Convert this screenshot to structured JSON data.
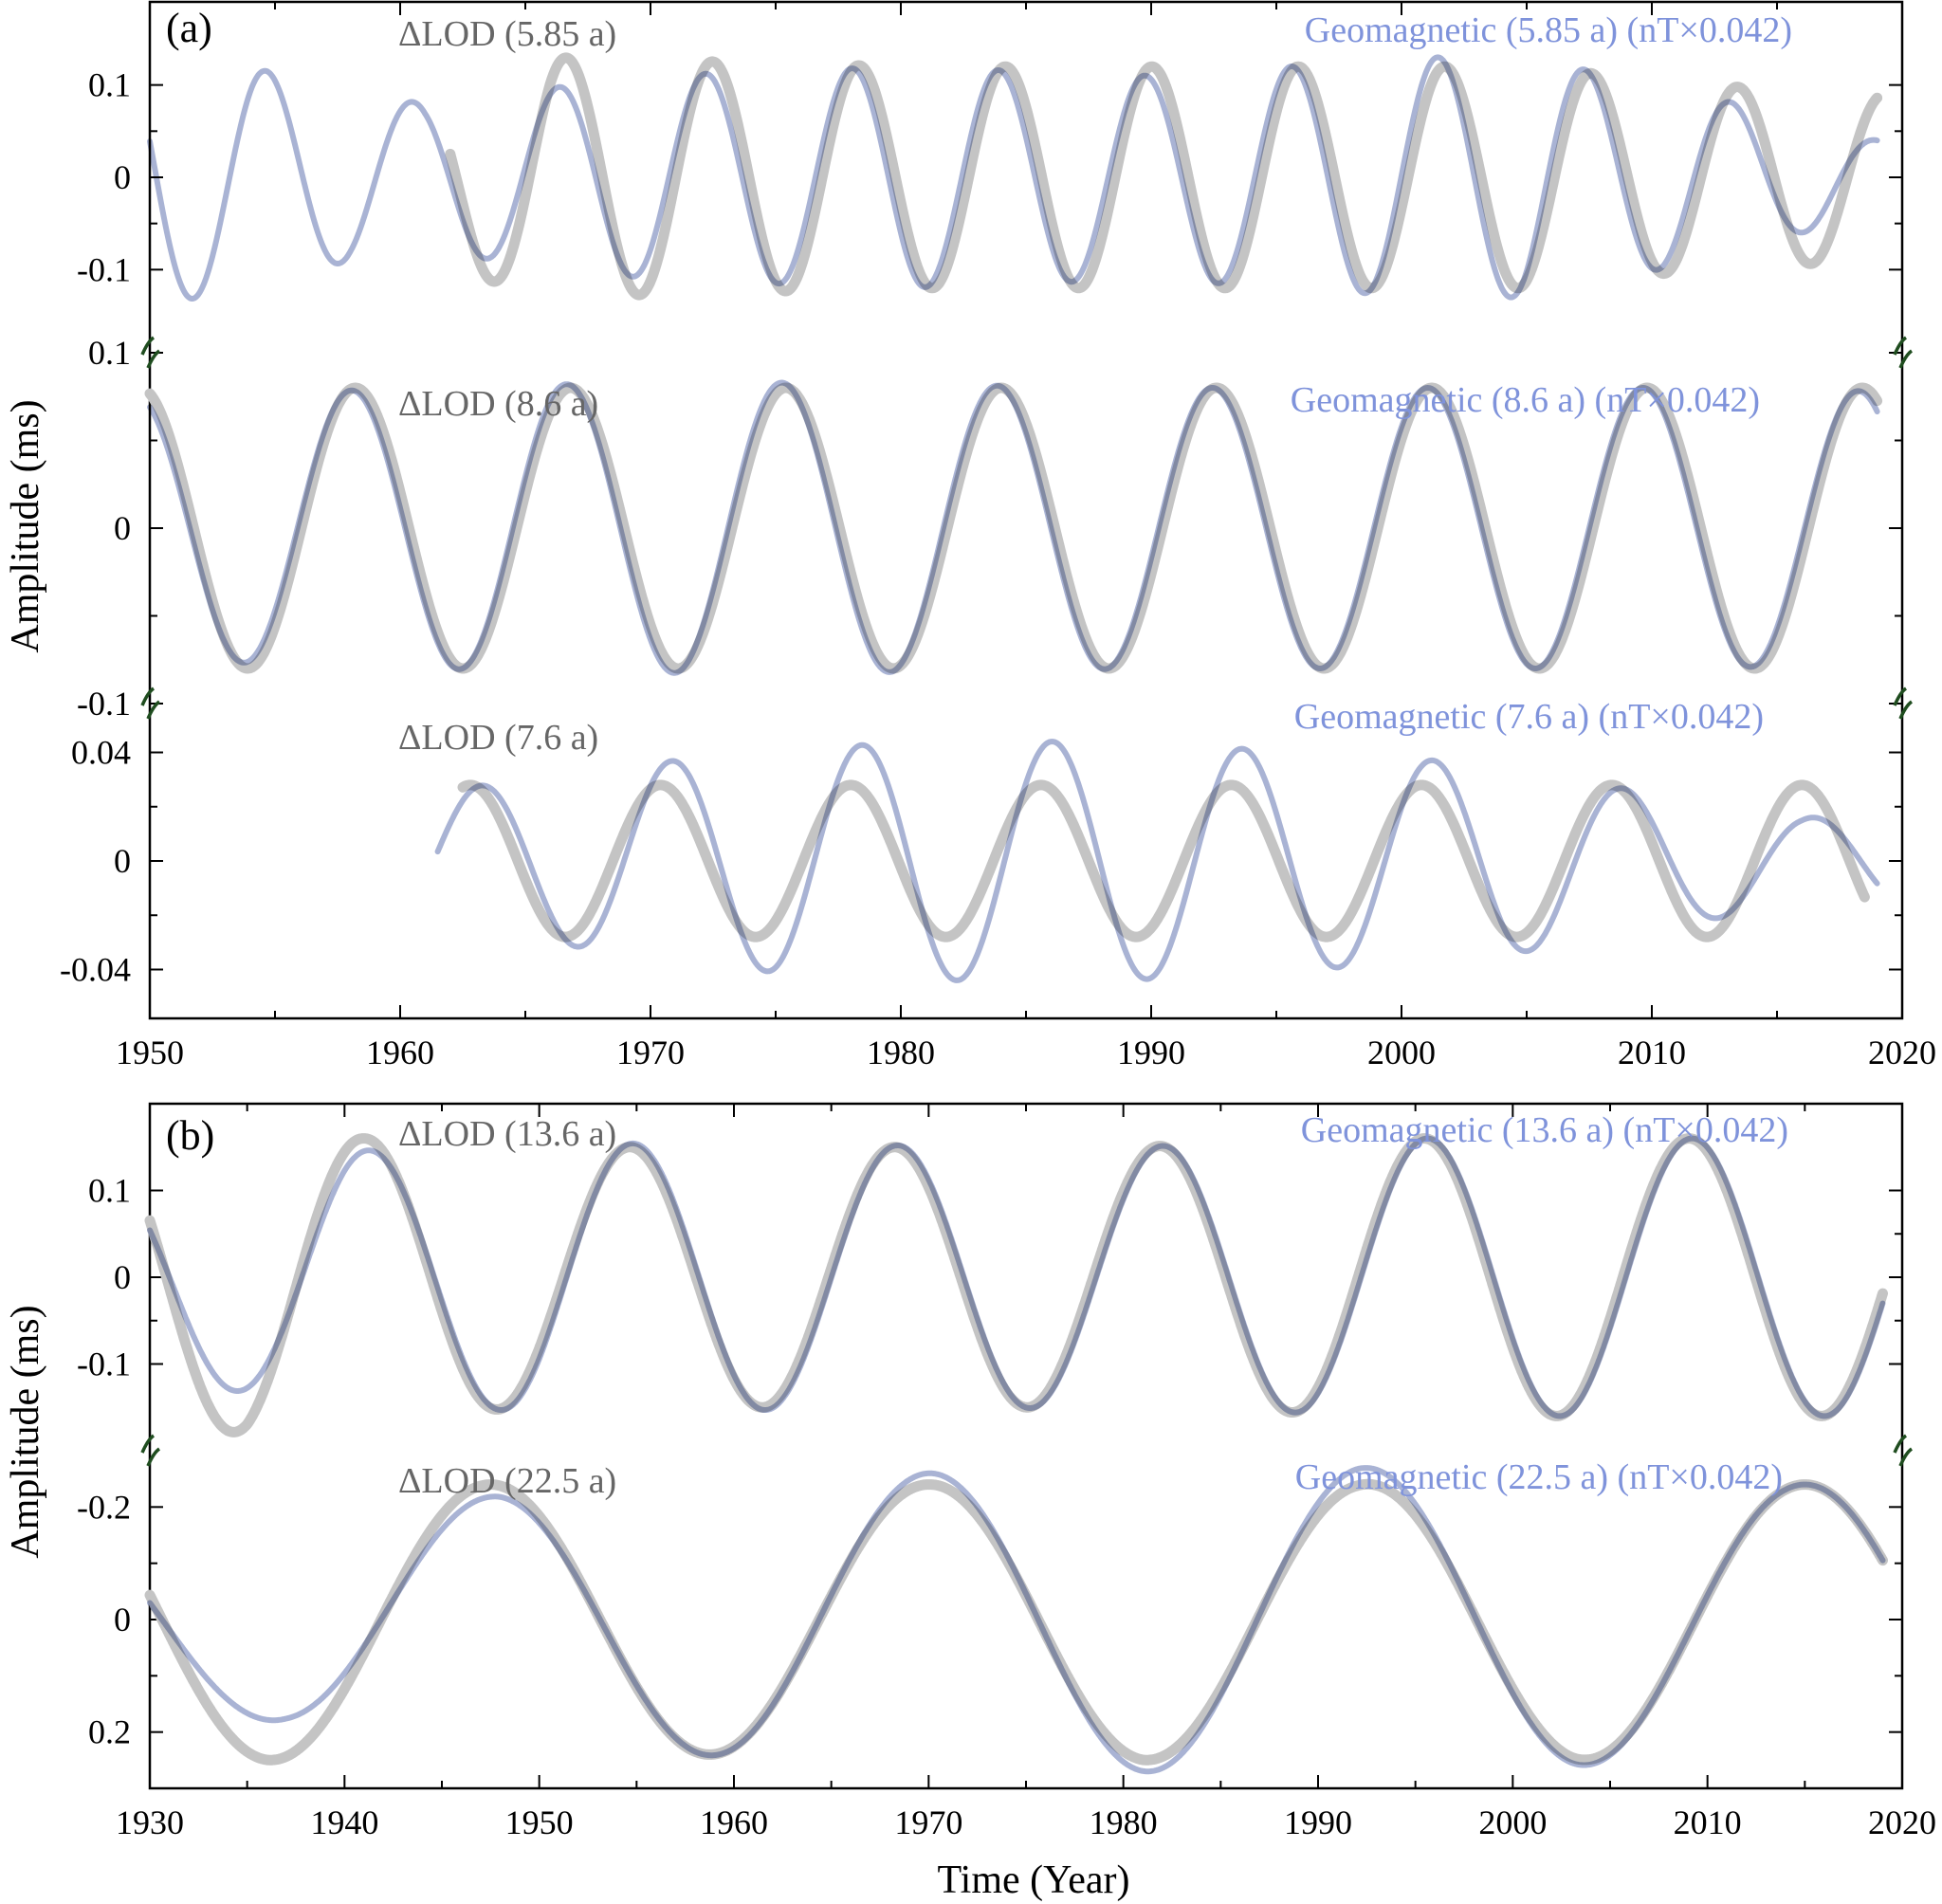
{
  "chart_data": [
    {
      "type": "line",
      "panel_label": "(a)",
      "ylabel": "Amplitude (ms)",
      "xlabel": "",
      "xlim": [
        1950,
        2020
      ],
      "xticks": [
        "1950",
        "1960",
        "1970",
        "1980",
        "1990",
        "2000",
        "2010",
        "2020"
      ],
      "subplots": [
        {
          "lod_label": "ΔLOD (5.85 a)",
          "geo_label": "Geomagnetic (5.85 a) (nT×0.042)",
          "ylim": [
            -0.19,
            0.19
          ],
          "yticks": [
            "0.1",
            "0",
            "-0.1"
          ],
          "yticks_values": [
            0.1,
            0,
            -0.1
          ],
          "series": [
            {
              "name": "ΔLOD (5.85 a)",
              "color": "#c4c4c4",
              "period": 5.85,
              "t_range": [
                1962.0,
                2019.0
              ],
              "amp_points": [
                [
                  1962,
                  0.1
                ],
                [
                  1966,
                  0.13
                ],
                [
                  1980,
                  0.12
                ],
                [
                  1995,
                  0.12
                ],
                [
                  2005,
                  0.12
                ],
                [
                  2012,
                  0.1
                ],
                [
                  2019,
                  0.09
                ]
              ],
              "ref_year": 1963.7,
              "ref_value": -0.13
            },
            {
              "name": "Geomagnetic (5.85 a) (nT×0.042)",
              "color": "#9aa6cc",
              "period": 5.85,
              "t_range": [
                1950.0,
                2019.0
              ],
              "amp_points": [
                [
                  1950,
                  0.14
                ],
                [
                  1954,
                  0.12
                ],
                [
                  1958,
                  0.09
                ],
                [
                  1961,
                  0.08
                ],
                [
                  1964,
                  0.09
                ],
                [
                  1970,
                  0.11
                ],
                [
                  1980,
                  0.12
                ],
                [
                  1990,
                  0.11
                ],
                [
                  2001,
                  0.13
                ],
                [
                  2005,
                  0.13
                ],
                [
                  2012,
                  0.09
                ],
                [
                  2016,
                  0.06
                ],
                [
                  2019,
                  0.04
                ]
              ],
              "ref_year": 1972.2,
              "ref_value": 0.125
            }
          ]
        },
        {
          "lod_label": "ΔLOD (8.6 a)",
          "geo_label": "Geomagnetic (8.6 a) (nT×0.042)",
          "ylim": [
            -0.1,
            0.1
          ],
          "yticks": [
            "0.1",
            "0",
            "-0.1"
          ],
          "yticks_values": [
            0.1,
            0,
            -0.1
          ],
          "series": [
            {
              "name": "ΔLOD (8.6 a)",
              "color": "#c4c4c4",
              "period": 8.6,
              "t_range": [
                1950.0,
                2019.0
              ],
              "amp_points": [
                [
                  1950,
                  0.08
                ],
                [
                  2019,
                  0.08
                ]
              ],
              "ref_year": 1957.9,
              "ref_value": 0.078
            },
            {
              "name": "Geomagnetic (8.6 a) (nT×0.042)",
              "color": "#9aa6cc",
              "period": 8.6,
              "t_range": [
                1950.0,
                2019.0
              ],
              "amp_points": [
                [
                  1950,
                  0.075
                ],
                [
                  1966,
                  0.082
                ],
                [
                  1975,
                  0.083
                ],
                [
                  1990,
                  0.08
                ],
                [
                  2010,
                  0.08
                ],
                [
                  2019,
                  0.078
                ]
              ],
              "ref_year": 1957.9,
              "ref_value": 0.078
            }
          ]
        },
        {
          "lod_label": "ΔLOD (7.6 a)",
          "geo_label": "Geomagnetic (7.6 a) (nT×0.042)",
          "ylim": [
            -0.058,
            0.058
          ],
          "yticks": [
            "0.04",
            "0",
            "-0.04"
          ],
          "yticks_values": [
            0.04,
            0,
            -0.04
          ],
          "series": [
            {
              "name": "ΔLOD (7.6 a)",
              "color": "#c4c4c4",
              "period": 7.6,
              "t_range": [
                1962.5,
                2018.5
              ],
              "amp_points": [
                [
                  1962,
                  0.028
                ],
                [
                  2018,
                  0.028
                ]
              ],
              "ref_year": 1970.4,
              "ref_value": 0.028
            },
            {
              "name": "Geomagnetic (7.6 a) (nT×0.042)",
              "color": "#9aa6cc",
              "period": 7.6,
              "t_range": [
                1961.5,
                2019.0
              ],
              "amp_points": [
                [
                  1961,
                  0.026
                ],
                [
                  1966,
                  0.03
                ],
                [
                  1970,
                  0.036
                ],
                [
                  1975,
                  0.041
                ],
                [
                  1981,
                  0.044
                ],
                [
                  1989,
                  0.044
                ],
                [
                  1996,
                  0.04
                ],
                [
                  2000,
                  0.038
                ],
                [
                  2004,
                  0.035
                ],
                [
                  2008,
                  0.028
                ],
                [
                  2012,
                  0.022
                ],
                [
                  2016,
                  0.016
                ],
                [
                  2019,
                  0.016
                ]
              ],
              "ref_year": 1970.4,
              "ref_value": 0.034
            }
          ]
        }
      ]
    },
    {
      "type": "line",
      "panel_label": "(b)",
      "ylabel": "Amplitude (ms)",
      "xlabel": "Time (Year)",
      "xlim": [
        1930,
        2020
      ],
      "xticks": [
        "1930",
        "1940",
        "1950",
        "1960",
        "1970",
        "1980",
        "1990",
        "2000",
        "2010",
        "2020"
      ],
      "subplots": [
        {
          "lod_label": "ΔLOD (13.6 a)",
          "geo_label": "Geomagnetic (13.6 a) (nT×0.042)",
          "ylim": [
            -0.2,
            0.2
          ],
          "yticks": [
            "0.1",
            "0",
            "-0.1"
          ],
          "yticks_values": [
            0.1,
            0,
            -0.1
          ],
          "series": [
            {
              "name": "ΔLOD (13.6 a)",
              "color": "#c4c4c4",
              "period": 13.6,
              "t_range": [
                1930.0,
                2019.0
              ],
              "amp_points": [
                [
                  1930,
                  0.17
                ],
                [
                  1935,
                  0.18
                ],
                [
                  1941,
                  0.16
                ],
                [
                  1950,
                  0.15
                ],
                [
                  1980,
                  0.15
                ],
                [
                  1995,
                  0.16
                ],
                [
                  2019,
                  0.16
                ]
              ],
              "ref_year": 1954.3,
              "ref_value": 0.148
            },
            {
              "name": "Geomagnetic (13.6 a) (nT×0.042)",
              "color": "#9aa6cc",
              "period": 13.6,
              "t_range": [
                1930.0,
                2019.0
              ],
              "amp_points": [
                [
                  1930,
                  0.12
                ],
                [
                  1934,
                  0.13
                ],
                [
                  1940,
                  0.145
                ],
                [
                  1950,
                  0.155
                ],
                [
                  1980,
                  0.15
                ],
                [
                  1995,
                  0.16
                ],
                [
                  2019,
                  0.16
                ]
              ],
              "ref_year": 1954.3,
              "ref_value": 0.15
            }
          ]
        },
        {
          "lod_label": "ΔLOD (22.5 a)",
          "geo_label": "Geomagnetic (22.5 a) (nT×0.042)",
          "ylim": [
            0.3,
            -0.3
          ],
          "yticks": [
            "-0.2",
            "0",
            "0.2"
          ],
          "yticks_values": [
            -0.2,
            0,
            0.2
          ],
          "series": [
            {
              "name": "ΔLOD (22.5 a)",
              "color": "#c4c4c4",
              "period": 22.5,
              "t_range": [
                1930.0,
                2019.0
              ],
              "amp_points": [
                [
                  1930,
                  0.25
                ],
                [
                  1936,
                  0.25
                ],
                [
                  1947,
                  0.24
                ],
                [
                  1958,
                  0.24
                ],
                [
                  1970,
                  0.24
                ],
                [
                  1981,
                  0.25
                ],
                [
                  1992,
                  0.24
                ],
                [
                  2003,
                  0.25
                ],
                [
                  2014,
                  0.24
                ],
                [
                  2019,
                  0.24
                ]
              ],
              "ref_year": 1947.5,
              "ref_value": -0.245
            },
            {
              "name": "Geomagnetic (22.5 a) (nT×0.042)",
              "color": "#9aa6cc",
              "period": 22.5,
              "t_range": [
                1930.0,
                2019.0
              ],
              "amp_points": [
                [
                  1930,
                  0.17
                ],
                [
                  1937,
                  0.18
                ],
                [
                  1948,
                  0.22
                ],
                [
                  1958,
                  0.24
                ],
                [
                  1970,
                  0.26
                ],
                [
                  1981,
                  0.27
                ],
                [
                  1992,
                  0.27
                ],
                [
                  2003,
                  0.26
                ],
                [
                  2014,
                  0.24
                ],
                [
                  2019,
                  0.24
                ]
              ],
              "ref_year": 1947.5,
              "ref_value": -0.22
            }
          ]
        }
      ]
    }
  ]
}
